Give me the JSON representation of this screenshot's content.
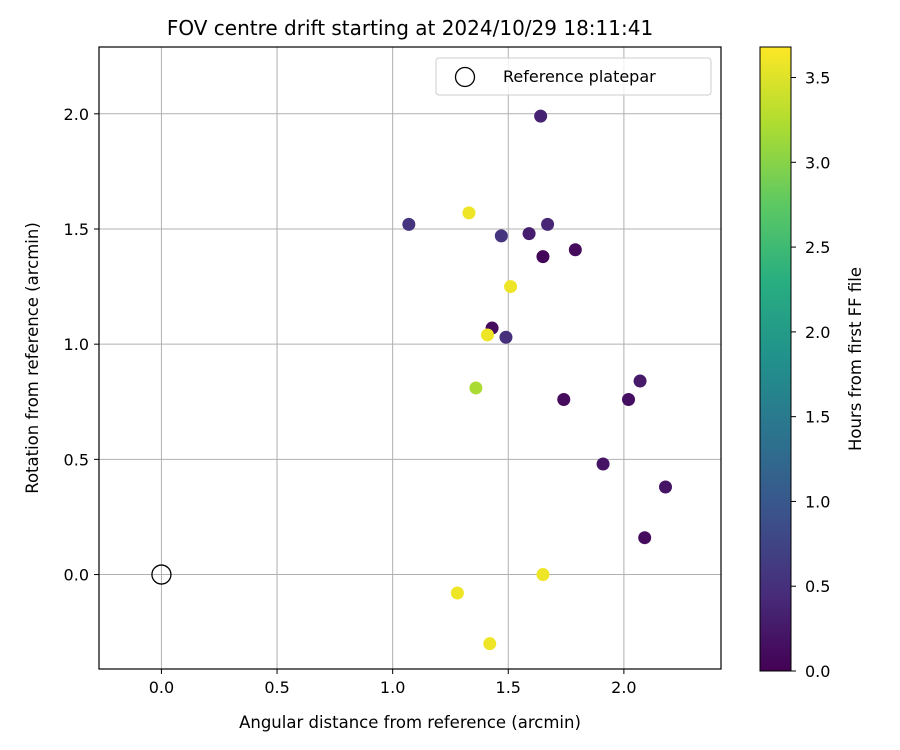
{
  "chart_data": {
    "type": "scatter",
    "title": "FOV centre drift starting at 2024/10/29 18:11:41",
    "xlabel": "Angular distance from reference (arcmin)",
    "ylabel": "Rotation from reference (arcmin)",
    "xlim": [
      -0.27,
      2.42
    ],
    "ylim": [
      -0.41,
      2.29
    ],
    "xticks": [
      0.0,
      0.5,
      1.0,
      1.5,
      2.0
    ],
    "yticks": [
      0.0,
      0.5,
      1.0,
      1.5,
      2.0
    ],
    "xtick_labels": [
      "0.0",
      "0.5",
      "1.0",
      "1.5",
      "2.0"
    ],
    "ytick_labels": [
      "0.0",
      "0.5",
      "1.0",
      "1.5",
      "2.0"
    ],
    "grid": true,
    "colormap": "viridis",
    "colorbar": {
      "label": "Hours from first FF file",
      "range": [
        0.0,
        3.68
      ],
      "ticks": [
        0.0,
        0.5,
        1.0,
        1.5,
        2.0,
        2.5,
        3.0,
        3.5
      ],
      "tick_labels": [
        "0.0",
        "0.5",
        "1.0",
        "1.5",
        "2.0",
        "2.5",
        "3.0",
        "3.5"
      ]
    },
    "legend": {
      "placement": "upper-right",
      "entries": [
        {
          "label": "Reference platepar",
          "marker": "open-circle"
        }
      ]
    },
    "reference_point": {
      "x": 0.0,
      "y": 0.0
    },
    "points": [
      {
        "x": 1.64,
        "y": 1.99,
        "c": 0.35
      },
      {
        "x": 1.07,
        "y": 1.52,
        "c": 0.55
      },
      {
        "x": 1.33,
        "y": 1.57,
        "c": 3.6
      },
      {
        "x": 1.47,
        "y": 1.47,
        "c": 0.55
      },
      {
        "x": 1.59,
        "y": 1.48,
        "c": 0.3
      },
      {
        "x": 1.67,
        "y": 1.52,
        "c": 0.4
      },
      {
        "x": 1.65,
        "y": 1.38,
        "c": 0.05
      },
      {
        "x": 1.79,
        "y": 1.41,
        "c": 0.1
      },
      {
        "x": 1.51,
        "y": 1.25,
        "c": 3.6
      },
      {
        "x": 1.43,
        "y": 1.07,
        "c": 0.1
      },
      {
        "x": 1.41,
        "y": 1.04,
        "c": 3.6
      },
      {
        "x": 1.49,
        "y": 1.03,
        "c": 0.5
      },
      {
        "x": 1.36,
        "y": 0.81,
        "c": 3.2
      },
      {
        "x": 1.74,
        "y": 0.76,
        "c": 0.1
      },
      {
        "x": 2.02,
        "y": 0.76,
        "c": 0.15
      },
      {
        "x": 2.07,
        "y": 0.84,
        "c": 0.25
      },
      {
        "x": 1.91,
        "y": 0.48,
        "c": 0.2
      },
      {
        "x": 2.18,
        "y": 0.38,
        "c": 0.2
      },
      {
        "x": 2.09,
        "y": 0.16,
        "c": 0.1
      },
      {
        "x": 1.65,
        "y": 0.0,
        "c": 3.6
      },
      {
        "x": 1.28,
        "y": -0.08,
        "c": 3.6
      },
      {
        "x": 1.42,
        "y": -0.3,
        "c": 3.6
      }
    ]
  }
}
